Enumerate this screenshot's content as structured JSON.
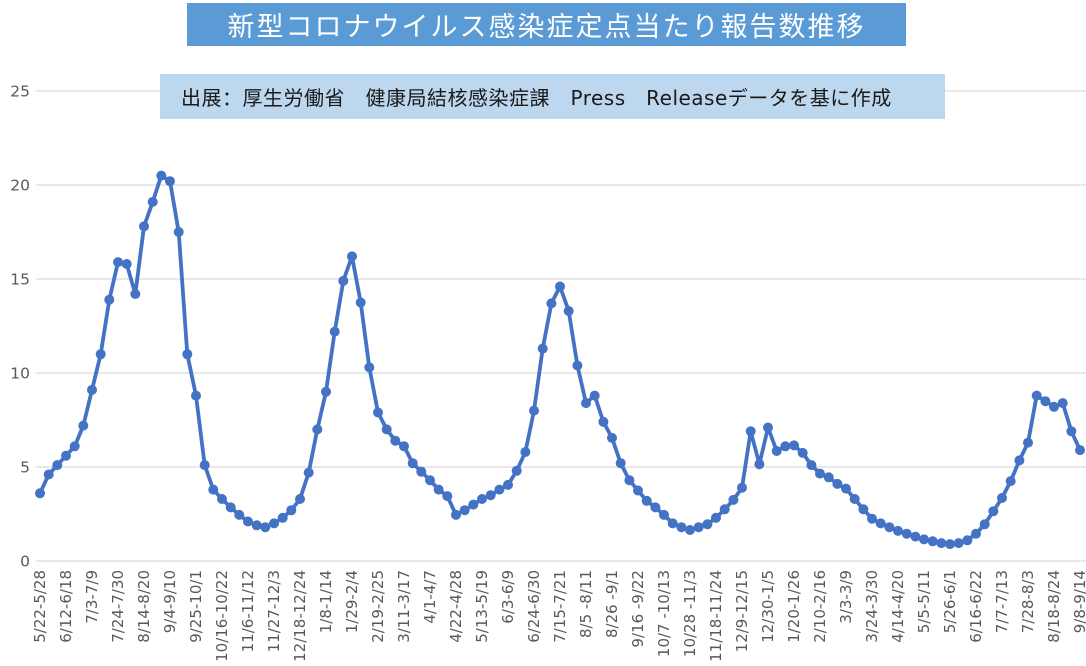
{
  "title": "新型コロナウイルス感染症定点当たり報告数推移",
  "subtitle": "出展：厚生労働省　健康局結核感染症課　Press　Releaseデータを基に作成",
  "colors": {
    "line": "#4472C4",
    "marker": "#4472C4",
    "title_bg": "#5B9BD5",
    "title_text": "#FFFFFF",
    "subtitle_bg": "#BDD7EE",
    "subtitle_text": "#1a1a1a",
    "grid": "#D9D9D9",
    "axis_text": "#595959",
    "background": "#FFFFFF"
  },
  "chart_data": {
    "type": "line",
    "title": "新型コロナウイルス感染症定点当たり報告数推移",
    "xlabel": "",
    "ylabel": "",
    "ylim": [
      0,
      25
    ],
    "y_ticks": [
      0,
      5,
      10,
      15,
      20,
      25
    ],
    "grid": "horizontal",
    "legend_position": "none",
    "marker_style": "circle",
    "x_tick_every": 3,
    "x_tick_labels": [
      "5/22-5/28",
      "6/12-6/18",
      "7/3-7/9",
      "7/24-7/30",
      "8/14-8/20",
      "9/4-9/10",
      "9/25-10/1",
      "10/16-10/22",
      "11/6-11/12",
      "11/27-12/3",
      "12/18-12/24",
      "1/8-1/14",
      "1/29-2/4",
      "2/19-2/25",
      "3/11-3/17",
      "4/1-4/7",
      "4/22-4/28",
      "5/13-5/19",
      "6/3-6/9",
      "6/24-6/30",
      "7/15-7/21",
      "8/5 -8/11",
      "8/26 -9/1",
      "9/16 -9/22",
      "10/7 -10/13",
      "10/28 -11/3",
      "11/18-11/24",
      "12/9-12/15",
      "12/30-1/5",
      "1/20-1/26",
      "2/10-2/16",
      "3/3-3/9",
      "3/24-3/30",
      "4/14-4/20",
      "5/5-5/11",
      "5/26-6/1",
      "6/16-6/22",
      "7/7-7/13",
      "7/28-8/3",
      "8/18-8/24",
      "9/8-9/14"
    ],
    "series": [
      {
        "name": "定点当たり報告数",
        "values": [
          3.6,
          4.6,
          5.1,
          5.6,
          6.1,
          7.2,
          9.1,
          11.0,
          13.9,
          15.9,
          15.8,
          14.2,
          17.8,
          19.1,
          20.5,
          20.2,
          17.5,
          11.0,
          8.8,
          5.1,
          3.8,
          3.3,
          2.85,
          2.45,
          2.1,
          1.9,
          1.8,
          2.0,
          2.3,
          2.7,
          3.3,
          4.7,
          7.0,
          9.0,
          12.2,
          14.9,
          16.2,
          13.75,
          10.3,
          7.9,
          7.0,
          6.4,
          6.1,
          5.2,
          4.75,
          4.3,
          3.8,
          3.45,
          2.45,
          2.7,
          3.0,
          3.3,
          3.5,
          3.8,
          4.05,
          4.8,
          5.8,
          8.0,
          11.3,
          13.7,
          14.6,
          13.3,
          10.4,
          8.4,
          8.8,
          7.4,
          6.55,
          5.2,
          4.3,
          3.75,
          3.2,
          2.85,
          2.45,
          2.0,
          1.8,
          1.65,
          1.8,
          1.95,
          2.3,
          2.75,
          3.25,
          3.9,
          6.9,
          5.15,
          7.1,
          5.85,
          6.1,
          6.15,
          5.75,
          5.1,
          4.65,
          4.45,
          4.1,
          3.85,
          3.3,
          2.75,
          2.25,
          2.0,
          1.8,
          1.6,
          1.45,
          1.3,
          1.15,
          1.05,
          0.95,
          0.9,
          0.95,
          1.1,
          1.45,
          1.95,
          2.65,
          3.35,
          4.25,
          5.35,
          6.3,
          8.8,
          8.5,
          8.2,
          8.4,
          6.9,
          5.9
        ]
      }
    ]
  }
}
